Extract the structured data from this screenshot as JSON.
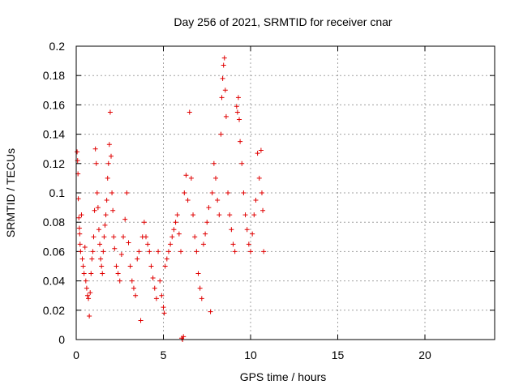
{
  "chart_data": {
    "type": "scatter",
    "title": "Day 256 of 2021, SRMTID for receiver cnar",
    "xlabel": "GPS time / hours",
    "ylabel": "SRMTID / TECUs",
    "xlim": [
      0,
      24
    ],
    "ylim": [
      0,
      0.2
    ],
    "x_ticks": [
      0,
      5,
      10,
      15,
      20
    ],
    "x_tick_labels": [
      "0",
      "5",
      "10",
      "15",
      "20"
    ],
    "y_ticks": [
      0,
      0.02,
      0.04,
      0.06,
      0.08,
      0.1,
      0.12,
      0.14,
      0.16,
      0.18,
      0.2
    ],
    "y_tick_labels": [
      "0",
      "0.02",
      "0.04",
      "0.06",
      "0.08",
      "0.1",
      "0.12",
      "0.14",
      "0.16",
      "0.18",
      "0.2"
    ],
    "grid": true,
    "marker": "+",
    "series": [
      {
        "name": "SRMTID",
        "color": "#e00000",
        "points": [
          [
            0.05,
            0.128
          ],
          [
            0.08,
            0.122
          ],
          [
            0.1,
            0.113
          ],
          [
            0.12,
            0.096
          ],
          [
            0.15,
            0.083
          ],
          [
            0.18,
            0.076
          ],
          [
            0.2,
            0.072
          ],
          [
            0.22,
            0.065
          ],
          [
            0.25,
            0.06
          ],
          [
            0.3,
            0.085
          ],
          [
            0.35,
            0.055
          ],
          [
            0.4,
            0.05
          ],
          [
            0.45,
            0.045
          ],
          [
            0.5,
            0.063
          ],
          [
            0.55,
            0.04
          ],
          [
            0.6,
            0.035
          ],
          [
            0.65,
            0.03
          ],
          [
            0.7,
            0.028
          ],
          [
            0.75,
            0.016
          ],
          [
            0.8,
            0.032
          ],
          [
            0.85,
            0.045
          ],
          [
            0.9,
            0.055
          ],
          [
            0.95,
            0.06
          ],
          [
            1.0,
            0.07
          ],
          [
            1.05,
            0.088
          ],
          [
            1.1,
            0.13
          ],
          [
            1.15,
            0.12
          ],
          [
            1.2,
            0.1
          ],
          [
            1.25,
            0.09
          ],
          [
            1.3,
            0.075
          ],
          [
            1.35,
            0.065
          ],
          [
            1.4,
            0.055
          ],
          [
            1.45,
            0.05
          ],
          [
            1.5,
            0.045
          ],
          [
            1.55,
            0.06
          ],
          [
            1.6,
            0.07
          ],
          [
            1.65,
            0.078
          ],
          [
            1.7,
            0.085
          ],
          [
            1.75,
            0.095
          ],
          [
            1.8,
            0.11
          ],
          [
            1.85,
            0.12
          ],
          [
            1.9,
            0.133
          ],
          [
            1.95,
            0.155
          ],
          [
            2.0,
            0.125
          ],
          [
            2.05,
            0.1
          ],
          [
            2.1,
            0.088
          ],
          [
            2.15,
            0.07
          ],
          [
            2.2,
            0.062
          ],
          [
            2.3,
            0.05
          ],
          [
            2.4,
            0.045
          ],
          [
            2.5,
            0.04
          ],
          [
            2.6,
            0.058
          ],
          [
            2.7,
            0.07
          ],
          [
            2.8,
            0.082
          ],
          [
            2.9,
            0.1
          ],
          [
            3.0,
            0.066
          ],
          [
            3.1,
            0.05
          ],
          [
            3.2,
            0.04
          ],
          [
            3.3,
            0.035
          ],
          [
            3.4,
            0.03
          ],
          [
            3.5,
            0.055
          ],
          [
            3.6,
            0.06
          ],
          [
            3.7,
            0.013
          ],
          [
            3.8,
            0.07
          ],
          [
            3.9,
            0.08
          ],
          [
            4.0,
            0.07
          ],
          [
            4.1,
            0.065
          ],
          [
            4.2,
            0.06
          ],
          [
            4.3,
            0.05
          ],
          [
            4.4,
            0.042
          ],
          [
            4.5,
            0.035
          ],
          [
            4.6,
            0.028
          ],
          [
            4.7,
            0.06
          ],
          [
            4.8,
            0.04
          ],
          [
            4.9,
            0.03
          ],
          [
            5.0,
            0.022
          ],
          [
            5.05,
            0.018
          ],
          [
            5.1,
            0.05
          ],
          [
            5.2,
            0.055
          ],
          [
            5.3,
            0.06
          ],
          [
            5.4,
            0.065
          ],
          [
            5.5,
            0.07
          ],
          [
            5.6,
            0.075
          ],
          [
            5.7,
            0.08
          ],
          [
            5.8,
            0.085
          ],
          [
            5.9,
            0.072
          ],
          [
            6.0,
            0.06
          ],
          [
            6.05,
            0.001
          ],
          [
            6.1,
            0.0
          ],
          [
            6.15,
            0.002
          ],
          [
            6.2,
            0.1
          ],
          [
            6.3,
            0.112
          ],
          [
            6.4,
            0.095
          ],
          [
            6.5,
            0.155
          ],
          [
            6.6,
            0.11
          ],
          [
            6.7,
            0.085
          ],
          [
            6.8,
            0.07
          ],
          [
            6.9,
            0.06
          ],
          [
            7.0,
            0.045
          ],
          [
            7.1,
            0.035
          ],
          [
            7.2,
            0.028
          ],
          [
            7.3,
            0.065
          ],
          [
            7.4,
            0.072
          ],
          [
            7.5,
            0.08
          ],
          [
            7.6,
            0.09
          ],
          [
            7.7,
            0.019
          ],
          [
            7.8,
            0.1
          ],
          [
            7.9,
            0.12
          ],
          [
            8.0,
            0.11
          ],
          [
            8.1,
            0.095
          ],
          [
            8.2,
            0.085
          ],
          [
            8.3,
            0.14
          ],
          [
            8.35,
            0.165
          ],
          [
            8.4,
            0.178
          ],
          [
            8.45,
            0.187
          ],
          [
            8.5,
            0.192
          ],
          [
            8.55,
            0.17
          ],
          [
            8.6,
            0.152
          ],
          [
            8.7,
            0.1
          ],
          [
            8.8,
            0.085
          ],
          [
            8.9,
            0.075
          ],
          [
            9.0,
            0.065
          ],
          [
            9.1,
            0.06
          ],
          [
            9.2,
            0.159
          ],
          [
            9.25,
            0.155
          ],
          [
            9.3,
            0.165
          ],
          [
            9.35,
            0.15
          ],
          [
            9.4,
            0.135
          ],
          [
            9.5,
            0.12
          ],
          [
            9.6,
            0.1
          ],
          [
            9.7,
            0.085
          ],
          [
            9.8,
            0.075
          ],
          [
            9.9,
            0.065
          ],
          [
            10.0,
            0.06
          ],
          [
            10.1,
            0.072
          ],
          [
            10.2,
            0.085
          ],
          [
            10.3,
            0.095
          ],
          [
            10.4,
            0.127
          ],
          [
            10.5,
            0.11
          ],
          [
            10.6,
            0.129
          ],
          [
            10.65,
            0.1
          ],
          [
            10.7,
            0.088
          ],
          [
            10.75,
            0.06
          ]
        ]
      }
    ]
  }
}
